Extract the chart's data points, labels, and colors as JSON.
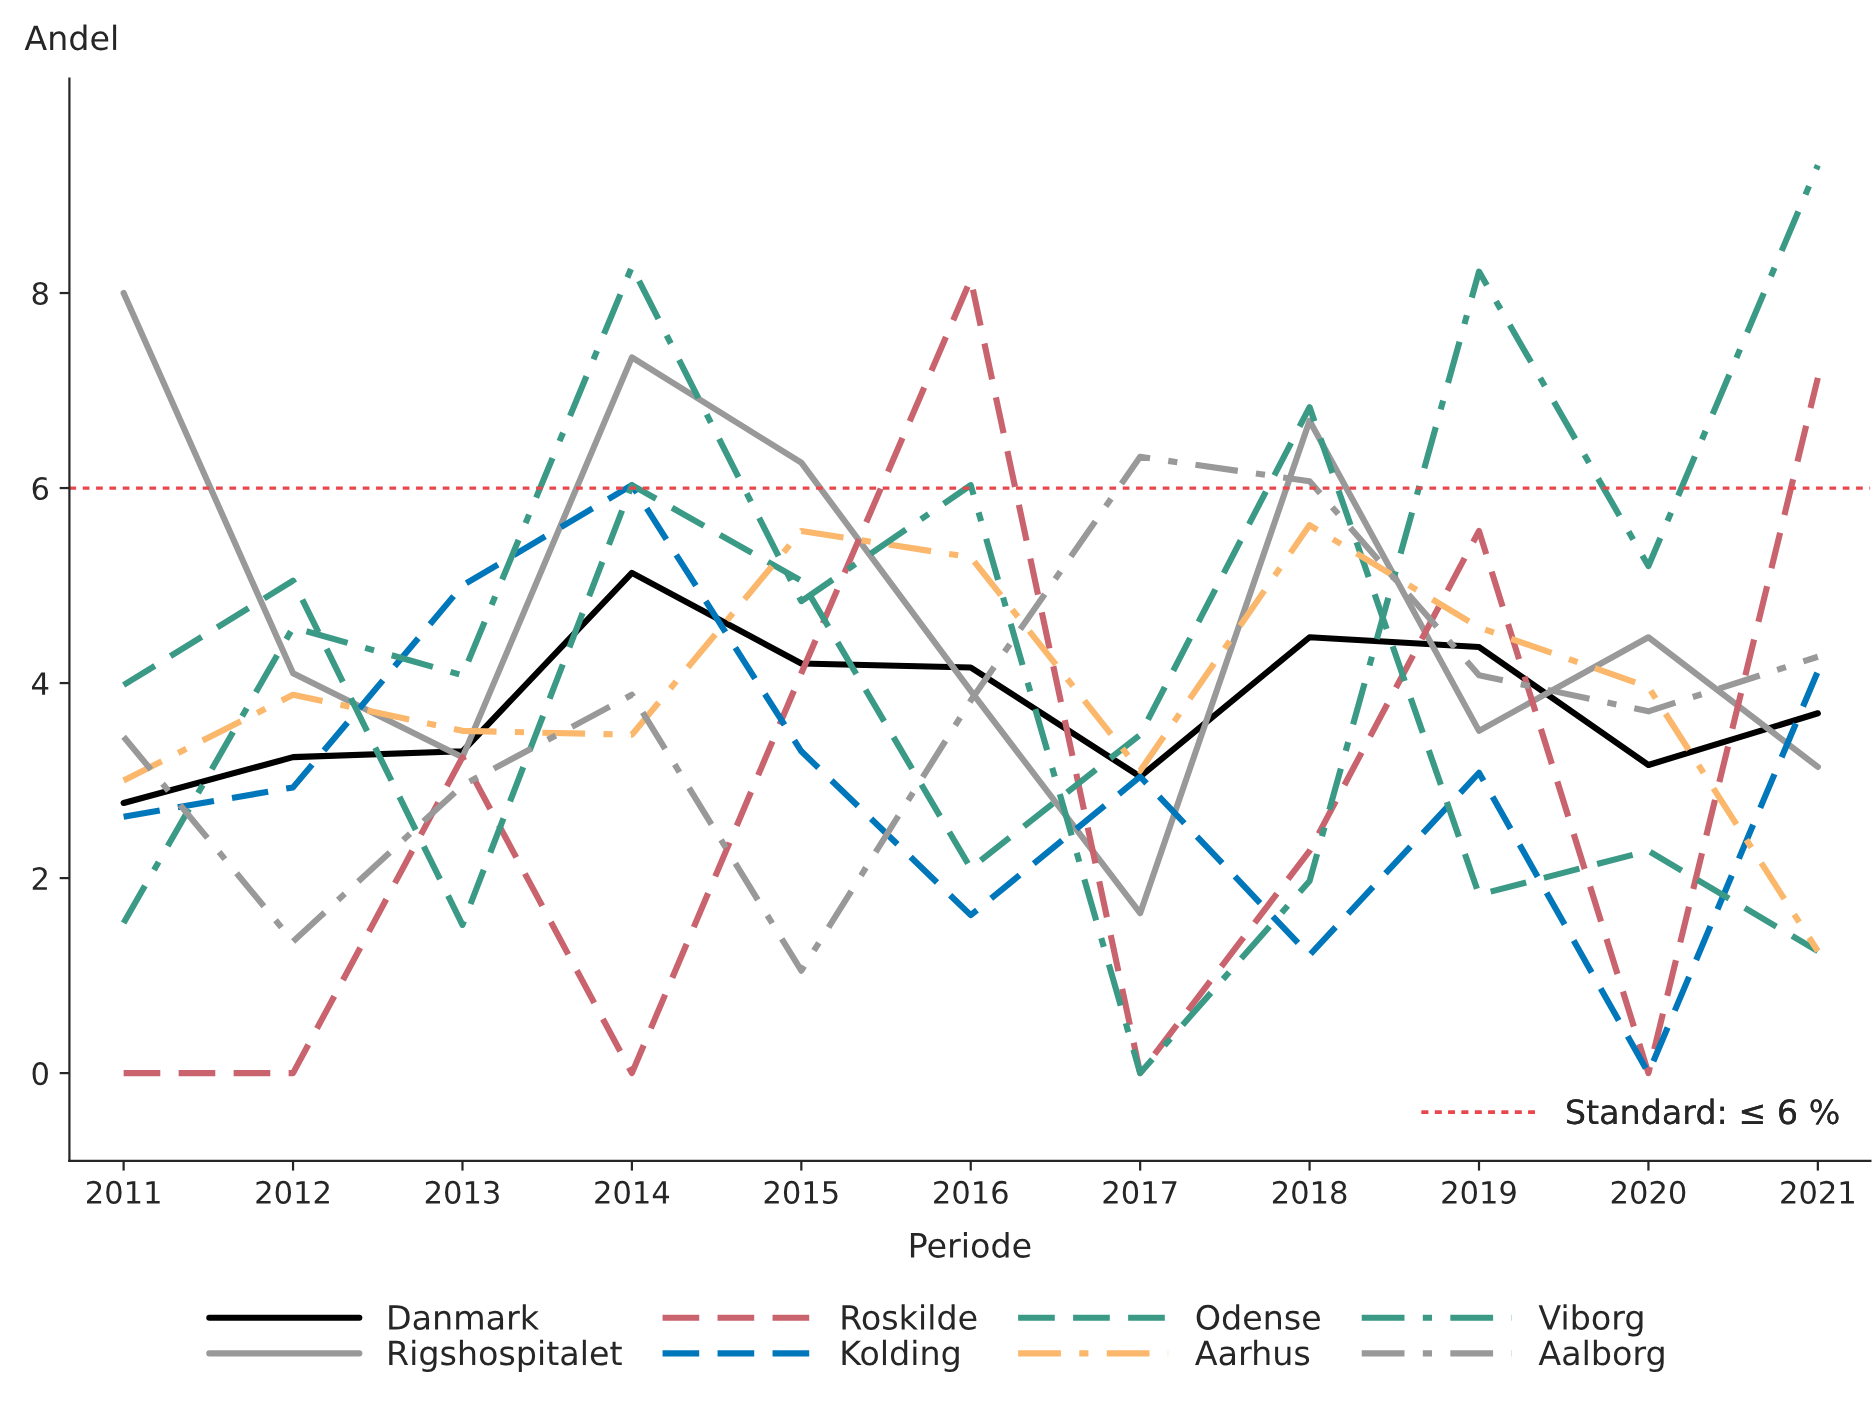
{
  "chart_data": {
    "type": "line",
    "xlabel": "Periode",
    "ylabel": "Andel",
    "x": [
      2011,
      2012,
      2013,
      2014,
      2015,
      2016,
      2017,
      2018,
      2019,
      2020,
      2021
    ],
    "xlim": [
      2010.68,
      2021.31
    ],
    "xticks": [
      2011,
      2012,
      2013,
      2014,
      2015,
      2016,
      2017,
      2018,
      2019,
      2020,
      2021
    ],
    "ylim": [
      -0.9,
      10.2
    ],
    "yticks": [
      0,
      2,
      4,
      6,
      8
    ],
    "grid": false,
    "legend": "bottom",
    "marker": "none",
    "series": [
      {
        "name": "Danmark",
        "color": "#000000",
        "line_style": "solid",
        "values": [
          2.77,
          3.24,
          3.3,
          5.13,
          4.2,
          4.16,
          3.04,
          4.47,
          4.37,
          3.16,
          3.69
        ]
      },
      {
        "name": "Rigshospitalet",
        "color": "#999999",
        "line_style": "solid",
        "values": [
          8.0,
          4.1,
          3.24,
          7.34,
          6.26,
          3.92,
          1.64,
          6.69,
          3.51,
          4.47,
          3.14
        ]
      },
      {
        "name": "Roskilde",
        "color": "#c9636e",
        "line_style": "dashed",
        "values": [
          0,
          0,
          3.24,
          0,
          4.1,
          8.14,
          0,
          2.28,
          5.56,
          0,
          7.13
        ]
      },
      {
        "name": "Kolding",
        "color": "#0077bb",
        "line_style": "dashed",
        "values": [
          2.63,
          2.93,
          5.0,
          6.03,
          3.3,
          1.62,
          3.04,
          1.21,
          3.08,
          0,
          4.12
        ]
      },
      {
        "name": "Odense",
        "color": "#3a9a86",
        "line_style": "dashed",
        "values": [
          3.98,
          5.05,
          1.52,
          6.03,
          5.05,
          2.1,
          3.47,
          6.83,
          1.83,
          2.28,
          1.25
        ]
      },
      {
        "name": "Aarhus",
        "color": "#fbb86c",
        "line_style": "dashdot",
        "values": [
          3.0,
          3.88,
          3.51,
          3.47,
          5.56,
          5.29,
          3.1,
          5.62,
          4.57,
          3.96,
          1.25
        ]
      },
      {
        "name": "Viborg",
        "color": "#3a9a86",
        "line_style": "dashdot",
        "values": [
          1.54,
          4.57,
          4.08,
          8.27,
          4.84,
          6.03,
          0,
          1.97,
          8.22,
          5.2,
          9.31
        ]
      },
      {
        "name": "Aalborg",
        "color": "#999999",
        "line_style": "dashdot",
        "values": [
          3.45,
          1.35,
          2.95,
          3.88,
          1.05,
          3.82,
          6.32,
          6.07,
          4.08,
          3.71,
          4.27
        ]
      }
    ],
    "ref_lines": [
      {
        "axis": "y",
        "value": 6,
        "label": "Standard: ≤ 6 %",
        "color": "#e8474e",
        "line_style": "dotted"
      }
    ]
  }
}
